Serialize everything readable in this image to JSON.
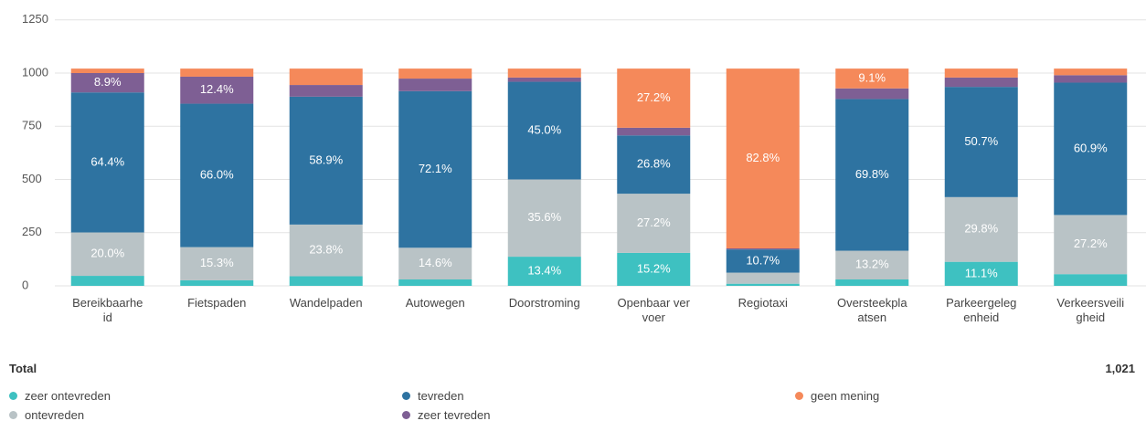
{
  "chart_data": {
    "type": "stacked_bar",
    "categories": [
      "Bereikbaarheid",
      "Fietspaden",
      "Wandelpaden",
      "Autowegen",
      "Doorstroming",
      "Openbaar vervoer",
      "Regiotaxi",
      "Oversteekplaatsen",
      "Parkeergelegenheid",
      "Verkeersveiligheid"
    ],
    "series": [
      {
        "name": "zeer ontevreden",
        "color": "#3ec1c1",
        "values": [
          47,
          26,
          45,
          30,
          137,
          155,
          10,
          30,
          113,
          55
        ],
        "value_labels": [
          null,
          null,
          null,
          null,
          "13.4%",
          "15.2%",
          null,
          null,
          "11.1%",
          null
        ]
      },
      {
        "name": "ontevreden",
        "color": "#b9c3c6",
        "values": [
          204,
          156,
          243,
          149,
          363,
          278,
          52,
          135,
          304,
          278
        ],
        "value_labels": [
          "20.0%",
          "15.3%",
          "23.8%",
          "14.6%",
          "35.6%",
          "27.2%",
          null,
          "13.2%",
          "29.8%",
          "27.2%"
        ]
      },
      {
        "name": "tevreden",
        "color": "#2e73a1",
        "values": [
          658,
          674,
          601,
          736,
          459,
          274,
          109,
          713,
          518,
          622
        ],
        "value_labels": [
          "64.4%",
          "66.0%",
          "58.9%",
          "72.1%",
          "45.0%",
          "26.8%",
          "10.7%",
          "69.8%",
          "50.7%",
          "60.9%"
        ]
      },
      {
        "name": "zeer tevreden",
        "color": "#7e5f94",
        "values": [
          91,
          127,
          55,
          59,
          20,
          36,
          5,
          50,
          44,
          35
        ],
        "value_labels": [
          "8.9%",
          "12.4%",
          null,
          null,
          null,
          null,
          null,
          null,
          null,
          null
        ]
      },
      {
        "name": "geen mening",
        "color": "#f5895a",
        "values": [
          21,
          38,
          77,
          47,
          42,
          278,
          845,
          93,
          42,
          31
        ],
        "value_labels": [
          null,
          null,
          null,
          null,
          null,
          "27.2%",
          "82.8%",
          "9.1%",
          null,
          null
        ]
      }
    ],
    "ylim": [
      0,
      1250
    ],
    "yticks": [
      0,
      250,
      500,
      750,
      1000,
      1250
    ],
    "grid": true,
    "total_label": "Total",
    "total": {
      "value": 1021,
      "label": "1,021"
    }
  }
}
